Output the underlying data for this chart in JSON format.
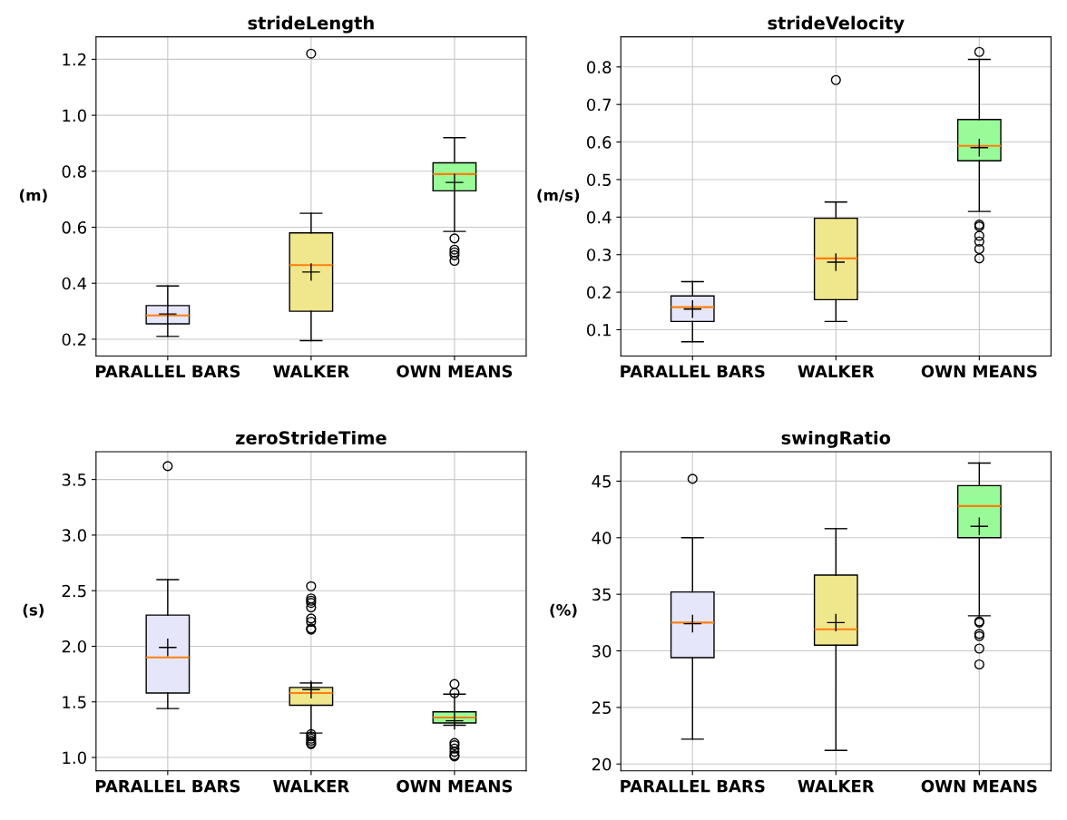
{
  "chart_data": [
    {
      "type": "box",
      "title": "strideLength",
      "ylabel": "(m)",
      "categories": [
        "PARALLEL BARS",
        "WALKER",
        "OWN MEANS"
      ],
      "colors": [
        "#e6e6fa",
        "#f0e68c",
        "#98fb98"
      ],
      "marker": "cross",
      "grid": true,
      "ylim": [
        0.14,
        1.28
      ],
      "yticks": [
        {
          "value": 0.2,
          "label": "0.2"
        },
        {
          "value": 0.4,
          "label": "0.4"
        },
        {
          "value": 0.6,
          "label": "0.6"
        },
        {
          "value": 0.8,
          "label": "0.8"
        },
        {
          "value": 1.0,
          "label": "1.0"
        },
        {
          "value": 1.2,
          "label": "1.2"
        }
      ],
      "boxes": [
        {
          "low": 0.21,
          "q1": 0.255,
          "median": 0.285,
          "q3": 0.32,
          "high": 0.39,
          "mean": 0.29
        },
        {
          "low": 0.195,
          "q1": 0.3,
          "median": 0.465,
          "q3": 0.58,
          "high": 0.65,
          "mean": 0.44,
          "outliers": [
            1.22
          ]
        },
        {
          "low": 0.585,
          "q1": 0.73,
          "median": 0.79,
          "q3": 0.83,
          "high": 0.92,
          "mean": 0.76,
          "outliers": [
            0.56,
            0.52,
            0.51,
            0.5,
            0.48
          ]
        }
      ]
    },
    {
      "type": "box",
      "title": "strideVelocity",
      "ylabel": "(m/s)",
      "categories": [
        "PARALLEL BARS",
        "WALKER",
        "OWN MEANS"
      ],
      "colors": [
        "#e6e6fa",
        "#f0e68c",
        "#98fb98"
      ],
      "marker": "cross",
      "grid": true,
      "ylim": [
        0.03,
        0.88
      ],
      "yticks": [
        0.1,
        0.2,
        0.3,
        0.4,
        0.5,
        0.6,
        0.7,
        0.8
      ],
      "boxes": [
        {
          "low": 0.068,
          "q1": 0.122,
          "median": 0.16,
          "q3": 0.19,
          "high": 0.228,
          "mean": 0.155
        },
        {
          "low": 0.122,
          "q1": 0.18,
          "median": 0.29,
          "q3": 0.397,
          "high": 0.44,
          "mean": 0.28,
          "outliers": [
            0.765
          ]
        },
        {
          "low": 0.415,
          "q1": 0.55,
          "median": 0.59,
          "q3": 0.66,
          "high": 0.82,
          "mean": 0.585,
          "outliers": [
            0.84,
            0.38,
            0.375,
            0.35,
            0.335,
            0.315,
            0.29
          ]
        }
      ]
    },
    {
      "type": "box",
      "title": "zeroStrideTime",
      "ylabel": "(s)",
      "categories": [
        "PARALLEL BARS",
        "WALKER",
        "OWN MEANS"
      ],
      "colors": [
        "#e6e6fa",
        "#f0e68c",
        "#98fb98"
      ],
      "marker": "cross",
      "grid": true,
      "ylim": [
        0.88,
        3.75
      ],
      "yticks": [
        {
          "value": 1.0,
          "label": "1.0"
        },
        1.5,
        {
          "value": 2.0,
          "label": "2.0"
        },
        2.5,
        {
          "value": 3.0,
          "label": "3.0"
        },
        3.5
      ],
      "boxes": [
        {
          "low": 1.44,
          "q1": 1.58,
          "median": 1.9,
          "q3": 2.28,
          "high": 2.6,
          "mean": 1.99,
          "outliers": [
            3.62
          ]
        },
        {
          "low": 1.22,
          "q1": 1.47,
          "median": 1.58,
          "q3": 1.63,
          "high": 1.67,
          "mean": 1.61,
          "outliers": [
            2.54,
            2.43,
            2.41,
            2.39,
            2.35,
            2.25,
            2.22,
            2.16,
            2.15,
            1.21,
            1.19,
            1.17,
            1.15,
            1.13,
            1.12
          ]
        },
        {
          "low": 1.29,
          "q1": 1.31,
          "median": 1.36,
          "q3": 1.41,
          "high": 1.57,
          "mean": 1.33,
          "outliers": [
            1.66,
            1.58,
            1.13,
            1.11,
            1.08,
            1.05,
            1.02,
            1.01
          ]
        }
      ]
    },
    {
      "type": "box",
      "title": "swingRatio",
      "ylabel": "(%)",
      "categories": [
        "PARALLEL BARS",
        "WALKER",
        "OWN MEANS"
      ],
      "colors": [
        "#e6e6fa",
        "#f0e68c",
        "#98fb98"
      ],
      "marker": "cross",
      "grid": true,
      "ylim": [
        19.4,
        47.6
      ],
      "yticks": [
        20,
        25,
        30,
        35,
        40,
        45
      ],
      "boxes": [
        {
          "low": 22.2,
          "q1": 29.4,
          "median": 32.5,
          "q3": 35.2,
          "high": 40,
          "mean": 32.4,
          "outliers": [
            45.2
          ]
        },
        {
          "low": 21.2,
          "q1": 30.5,
          "median": 31.9,
          "q3": 36.7,
          "high": 40.8,
          "mean": 32.5
        },
        {
          "low": 33.1,
          "q1": 40,
          "median": 42.8,
          "q3": 44.6,
          "high": 46.6,
          "mean": 41,
          "outliers": [
            32.6,
            32.5,
            31.5,
            31.3,
            30.2,
            28.8
          ]
        }
      ]
    }
  ]
}
